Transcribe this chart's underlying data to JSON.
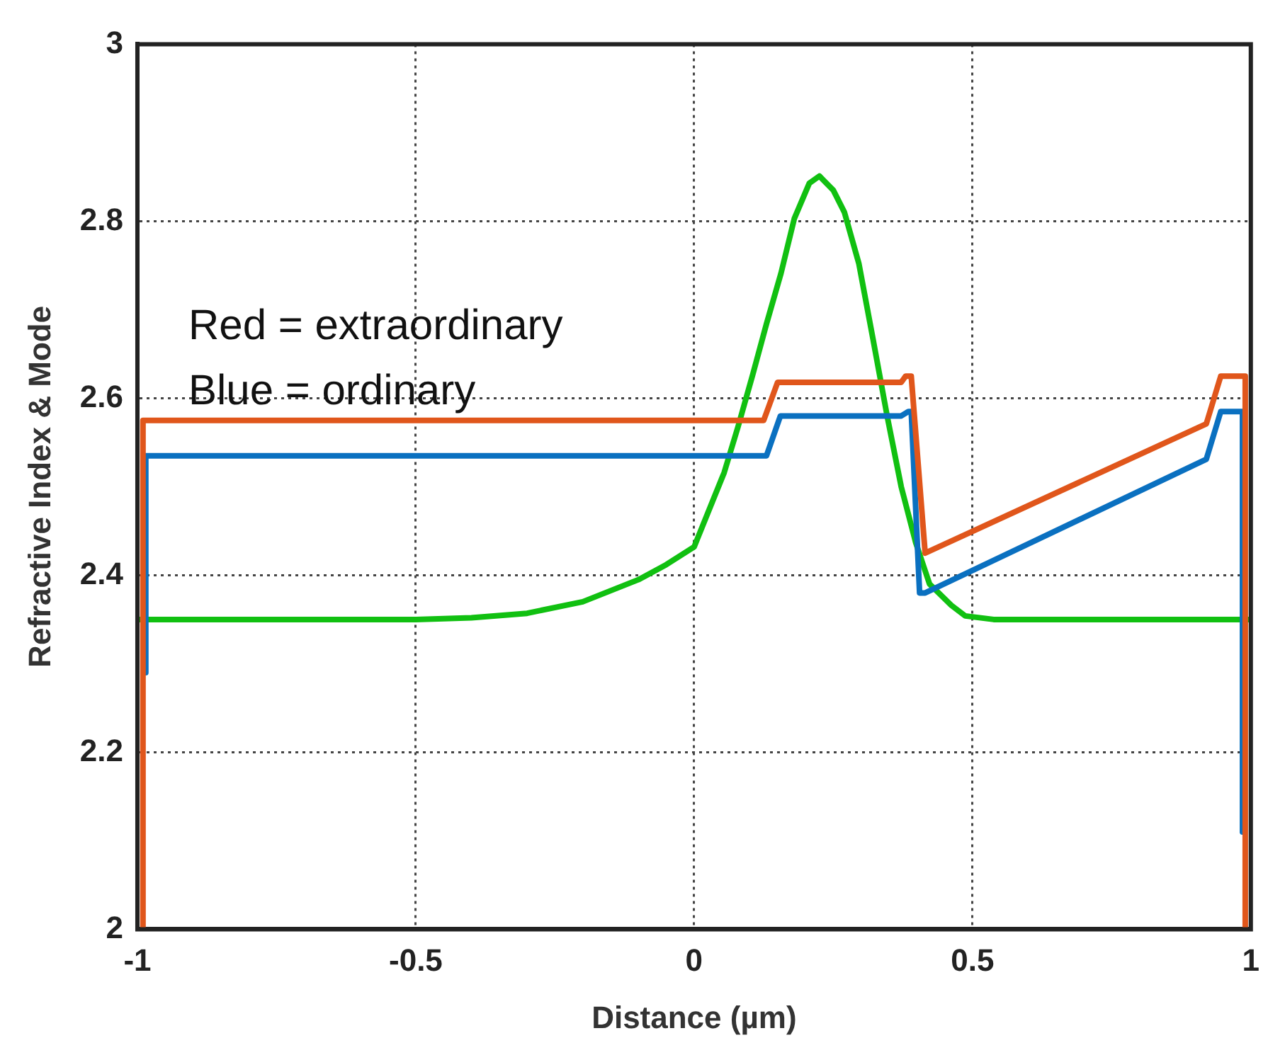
{
  "chart_data": {
    "type": "line",
    "xlabel": "Distance (µm)",
    "ylabel": "Refractive Index & Mode",
    "xlim": [
      -1,
      1
    ],
    "xticks": [
      -1,
      -0.5,
      0,
      0.5,
      1
    ],
    "ylim": [
      2,
      3
    ],
    "yticks": [
      2,
      2.2,
      2.4,
      2.6,
      2.8,
      3
    ],
    "grid": true,
    "marker": "none",
    "line_style": "solid",
    "annotations": [
      "Red = extraordinary",
      "Blue = ordinary"
    ],
    "series": [
      {
        "color": "#e0561b",
        "x": [
          -0.99,
          -0.99,
          0.125,
          0.15,
          0.372,
          0.38,
          0.39,
          0.415,
          0.92,
          0.946,
          0.99,
          0.99
        ],
        "values": [
          2,
          2.575,
          2.575,
          2.618,
          2.618,
          2.625,
          2.625,
          2.425,
          2.571,
          2.625,
          2.625,
          2
        ]
      },
      {
        "color": "#0a70c0",
        "x": [
          -0.985,
          -0.985,
          0.13,
          0.155,
          0.372,
          0.385,
          0.39,
          0.405,
          0.415,
          0.92,
          0.946,
          0.985,
          0.985
        ],
        "values": [
          2.29,
          2.535,
          2.535,
          2.58,
          2.58,
          2.585,
          2.585,
          2.38,
          2.38,
          2.531,
          2.585,
          2.585,
          2.11
        ]
      },
      {
        "color": "#11c011",
        "x": [
          -1,
          -0.5,
          -0.4,
          -0.3,
          -0.2,
          -0.1,
          -0.05,
          0,
          0.054,
          0.079,
          0.105,
          0.13,
          0.156,
          0.18,
          0.207,
          0.225,
          0.25,
          0.27,
          0.296,
          0.321,
          0.347,
          0.372,
          0.398,
          0.423,
          0.462,
          0.487,
          0.538,
          1
        ],
        "values": [
          2.35,
          2.35,
          2.352,
          2.357,
          2.37,
          2.395,
          2.412,
          2.432,
          2.516,
          2.568,
          2.626,
          2.684,
          2.741,
          2.803,
          2.843,
          2.851,
          2.835,
          2.81,
          2.752,
          2.668,
          2.579,
          2.5,
          2.437,
          2.39,
          2.366,
          2.354,
          2.35,
          2.35
        ]
      }
    ]
  }
}
